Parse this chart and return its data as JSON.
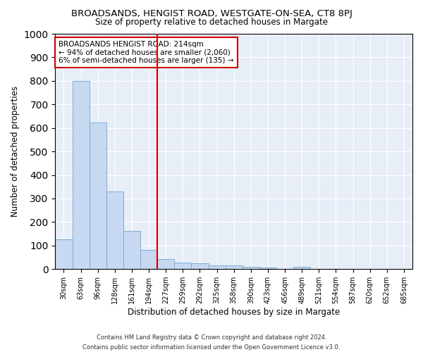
{
  "title": "BROADSANDS, HENGIST ROAD, WESTGATE-ON-SEA, CT8 8PJ",
  "subtitle": "Size of property relative to detached houses in Margate",
  "xlabel": "Distribution of detached houses by size in Margate",
  "ylabel": "Number of detached properties",
  "categories": [
    "30sqm",
    "63sqm",
    "96sqm",
    "128sqm",
    "161sqm",
    "194sqm",
    "227sqm",
    "259sqm",
    "292sqm",
    "325sqm",
    "358sqm",
    "390sqm",
    "423sqm",
    "456sqm",
    "489sqm",
    "521sqm",
    "554sqm",
    "587sqm",
    "620sqm",
    "652sqm",
    "685sqm"
  ],
  "values": [
    125,
    800,
    623,
    330,
    162,
    82,
    42,
    28,
    24,
    17,
    15,
    10,
    8,
    0,
    10,
    0,
    0,
    0,
    0,
    0,
    0
  ],
  "bar_color": "#c6d9f0",
  "bar_edge_color": "#7aaed6",
  "vline_x_idx": 6,
  "vline_color": "#cc0000",
  "annotation_title": "BROADSANDS HENGIST ROAD: 214sqm",
  "annotation_line1": "← 94% of detached houses are smaller (2,060)",
  "annotation_line2": "6% of semi-detached houses are larger (135) →",
  "annotation_box_color": "#cc0000",
  "ylim": [
    0,
    1000
  ],
  "yticks": [
    0,
    100,
    200,
    300,
    400,
    500,
    600,
    700,
    800,
    900,
    1000
  ],
  "footer_line1": "Contains HM Land Registry data © Crown copyright and database right 2024.",
  "footer_line2": "Contains public sector information licensed under the Open Government Licence v3.0.",
  "plot_bg_color": "#e8eef8"
}
